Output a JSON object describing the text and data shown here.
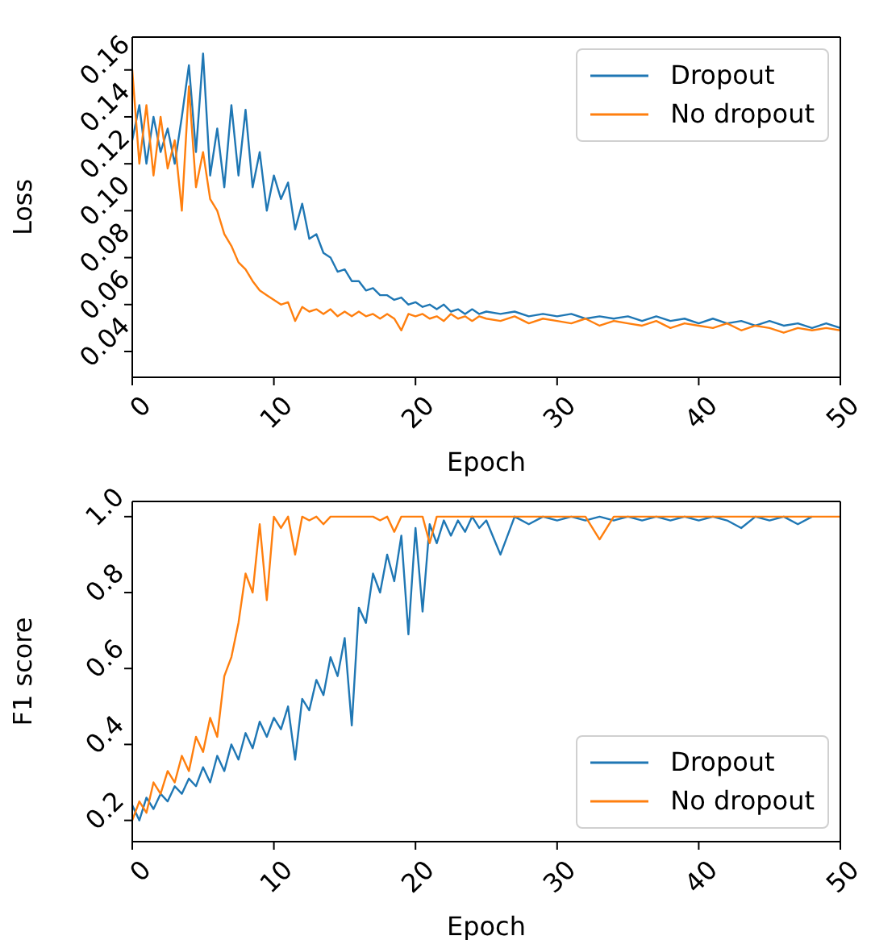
{
  "chart_data": [
    {
      "type": "line",
      "xlabel": "Epoch",
      "ylabel": "Loss",
      "xlim": [
        0,
        50
      ],
      "xticks": [
        0,
        10,
        20,
        30,
        40,
        50
      ],
      "ylim": [
        0.029,
        0.174
      ],
      "yticks": [
        {
          "value": 0.04,
          "label": "0.04"
        },
        {
          "value": 0.06,
          "label": "0.06"
        },
        {
          "value": 0.08,
          "label": "0.08"
        },
        {
          "value": 0.1,
          "label": "0.10"
        },
        {
          "value": 0.12,
          "label": "0.12"
        },
        {
          "value": 0.14,
          "label": "0.14"
        },
        {
          "value": 0.16,
          "label": "0.16"
        }
      ],
      "grid": false,
      "legend": "top right",
      "marker": "none",
      "line_style": "solid",
      "x": [
        0,
        0.5,
        1,
        1.5,
        2,
        2.5,
        3,
        3.5,
        4,
        4.5,
        5,
        5.5,
        6,
        6.5,
        7,
        7.5,
        8,
        8.5,
        9,
        9.5,
        10,
        10.5,
        11,
        11.5,
        12,
        12.5,
        13,
        13.5,
        14,
        14.5,
        15,
        15.5,
        16,
        16.5,
        17,
        17.5,
        18,
        18.5,
        19,
        19.5,
        20,
        20.5,
        21,
        21.5,
        22,
        22.5,
        23,
        23.5,
        24,
        24.5,
        25,
        26,
        27,
        28,
        29,
        30,
        31,
        32,
        33,
        34,
        35,
        36,
        37,
        38,
        39,
        40,
        41,
        42,
        43,
        44,
        45,
        46,
        47,
        48,
        49,
        50
      ],
      "series": [
        {
          "name": "Dropout",
          "color": "#1f77b4",
          "values": [
            0.13,
            0.145,
            0.12,
            0.14,
            0.125,
            0.135,
            0.12,
            0.14,
            0.162,
            0.125,
            0.167,
            0.115,
            0.135,
            0.11,
            0.145,
            0.115,
            0.143,
            0.11,
            0.125,
            0.1,
            0.115,
            0.105,
            0.112,
            0.092,
            0.103,
            0.088,
            0.09,
            0.082,
            0.08,
            0.074,
            0.075,
            0.07,
            0.07,
            0.066,
            0.067,
            0.064,
            0.064,
            0.062,
            0.063,
            0.06,
            0.061,
            0.059,
            0.06,
            0.058,
            0.06,
            0.057,
            0.058,
            0.056,
            0.058,
            0.056,
            0.057,
            0.056,
            0.057,
            0.055,
            0.056,
            0.055,
            0.056,
            0.054,
            0.055,
            0.054,
            0.055,
            0.053,
            0.055,
            0.053,
            0.054,
            0.052,
            0.054,
            0.052,
            0.053,
            0.051,
            0.053,
            0.051,
            0.052,
            0.05,
            0.052,
            0.05
          ]
        },
        {
          "name": "No dropout",
          "color": "#ff7f0e",
          "values": [
            0.16,
            0.12,
            0.145,
            0.115,
            0.14,
            0.118,
            0.13,
            0.1,
            0.153,
            0.11,
            0.125,
            0.105,
            0.1,
            0.09,
            0.085,
            0.078,
            0.075,
            0.07,
            0.066,
            0.064,
            0.062,
            0.06,
            0.061,
            0.053,
            0.059,
            0.057,
            0.058,
            0.056,
            0.058,
            0.055,
            0.057,
            0.055,
            0.057,
            0.055,
            0.056,
            0.054,
            0.056,
            0.054,
            0.049,
            0.056,
            0.055,
            0.056,
            0.054,
            0.055,
            0.053,
            0.056,
            0.054,
            0.055,
            0.053,
            0.055,
            0.054,
            0.053,
            0.055,
            0.052,
            0.054,
            0.053,
            0.052,
            0.054,
            0.051,
            0.053,
            0.052,
            0.051,
            0.053,
            0.05,
            0.052,
            0.051,
            0.05,
            0.052,
            0.049,
            0.051,
            0.05,
            0.048,
            0.05,
            0.049,
            0.05,
            0.049
          ]
        }
      ]
    },
    {
      "type": "line",
      "xlabel": "Epoch",
      "ylabel": "F1 score",
      "xlim": [
        0,
        50
      ],
      "xticks": [
        0,
        10,
        20,
        30,
        40,
        50
      ],
      "ylim": [
        0.144,
        1.04
      ],
      "yticks": [
        0.2,
        0.4,
        0.6,
        0.8,
        {
          "value": 1,
          "label": "1.0"
        }
      ],
      "grid": false,
      "legend": "bottom right",
      "marker": "none",
      "line_style": "solid",
      "x": [
        0,
        0.5,
        1,
        1.5,
        2,
        2.5,
        3,
        3.5,
        4,
        4.5,
        5,
        5.5,
        6,
        6.5,
        7,
        7.5,
        8,
        8.5,
        9,
        9.5,
        10,
        10.5,
        11,
        11.5,
        12,
        12.5,
        13,
        13.5,
        14,
        14.5,
        15,
        15.5,
        16,
        16.5,
        17,
        17.5,
        18,
        18.5,
        19,
        19.5,
        20,
        20.5,
        21,
        21.5,
        22,
        22.5,
        23,
        23.5,
        24,
        24.5,
        25,
        26,
        27,
        28,
        29,
        30,
        31,
        32,
        33,
        34,
        35,
        36,
        37,
        38,
        39,
        40,
        41,
        42,
        43,
        44,
        45,
        46,
        47,
        48,
        49,
        50
      ],
      "series": [
        {
          "name": "Dropout",
          "color": "#1f77b4",
          "values": [
            0.24,
            0.2,
            0.26,
            0.23,
            0.27,
            0.25,
            0.29,
            0.27,
            0.31,
            0.29,
            0.34,
            0.3,
            0.37,
            0.33,
            0.4,
            0.36,
            0.43,
            0.39,
            0.46,
            0.42,
            0.47,
            0.44,
            0.5,
            0.36,
            0.52,
            0.49,
            0.57,
            0.53,
            0.63,
            0.58,
            0.68,
            0.45,
            0.76,
            0.72,
            0.85,
            0.8,
            0.9,
            0.83,
            0.95,
            0.69,
            0.97,
            0.75,
            0.98,
            0.93,
            0.99,
            0.95,
            0.99,
            0.96,
            1.0,
            0.97,
            0.99,
            0.9,
            1.0,
            0.98,
            1.0,
            0.99,
            1.0,
            0.99,
            1.0,
            0.99,
            1.0,
            0.99,
            1.0,
            0.99,
            1.0,
            0.99,
            1.0,
            0.99,
            0.97,
            1.0,
            0.99,
            1.0,
            0.98,
            1.0,
            null,
            null
          ]
        },
        {
          "name": "No dropout",
          "color": "#ff7f0e",
          "values": [
            0.2,
            0.25,
            0.22,
            0.3,
            0.27,
            0.33,
            0.3,
            0.37,
            0.33,
            0.42,
            0.38,
            0.47,
            0.42,
            0.58,
            0.63,
            0.72,
            0.85,
            0.8,
            0.98,
            0.78,
            1.0,
            0.97,
            1.0,
            0.9,
            1.0,
            0.99,
            1.0,
            0.98,
            1.0,
            1.0,
            1.0,
            1.0,
            1.0,
            1.0,
            1.0,
            0.99,
            1.0,
            0.96,
            1.0,
            1.0,
            1.0,
            1.0,
            0.93,
            1.0,
            1.0,
            1.0,
            1.0,
            1.0,
            1.0,
            1.0,
            1.0,
            1.0,
            1.0,
            1.0,
            1.0,
            1.0,
            1.0,
            1.0,
            0.94,
            1.0,
            1.0,
            1.0,
            1.0,
            1.0,
            1.0,
            1.0,
            1.0,
            1.0,
            1.0,
            1.0,
            1.0,
            1.0,
            1.0,
            1.0,
            1.0,
            1.0
          ]
        }
      ]
    }
  ]
}
